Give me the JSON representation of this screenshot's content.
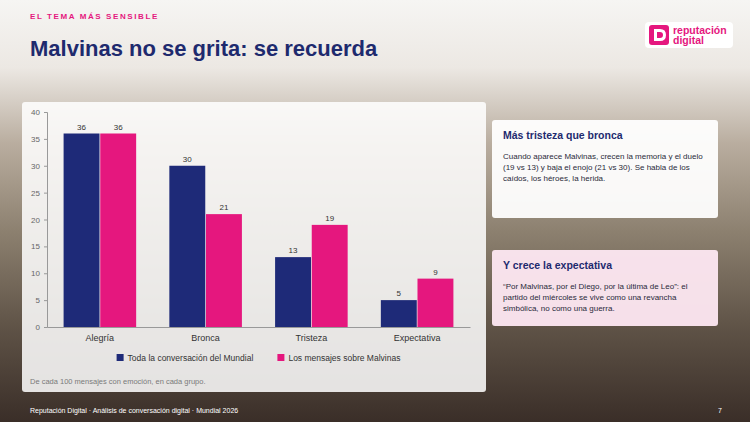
{
  "header": {
    "kicker": "EL TEMA MÁS SENSIBLE",
    "title": "Malvinas no se grita: se recuerda",
    "logo": [
      "reputación",
      "digital"
    ]
  },
  "chart_data": {
    "type": "bar",
    "categories": [
      "Alegría",
      "Bronca",
      "Tristeza",
      "Expectativa"
    ],
    "series": [
      {
        "name": "Toda la conversación del Mundial",
        "color": "#1e2a78",
        "values": [
          36,
          30,
          13,
          5
        ]
      },
      {
        "name": "Los mensajes sobre Malvinas",
        "color": "#e5177e",
        "values": [
          36,
          21,
          19,
          9
        ]
      }
    ],
    "ylim": [
      0,
      40
    ],
    "yticks": [
      0,
      5,
      10,
      15,
      20,
      25,
      30,
      35,
      40
    ],
    "grid": false,
    "legend": "bottom",
    "data_labels": true
  },
  "chart_note": "De cada 100 mensajes con emoción, en cada grupo.",
  "panels": [
    {
      "title": "Más tristeza que bronca",
      "text": "Cuando aparece Malvinas, crecen la memoria y el duelo (19 vs 13) y baja el enojo (21 vs 30). Se habla de los caídos, los héroes, la herida."
    },
    {
      "title": "Y crece la expectativa",
      "text": "“Por Malvinas, por el Diego, por la última de Leo”: el partido del miércoles se vive como una revancha simbólica, no como una guerra."
    }
  ],
  "footer": {
    "text": "Reputación Digital · Análisis de conversación digital · Mundial 2026",
    "page": 7
  }
}
